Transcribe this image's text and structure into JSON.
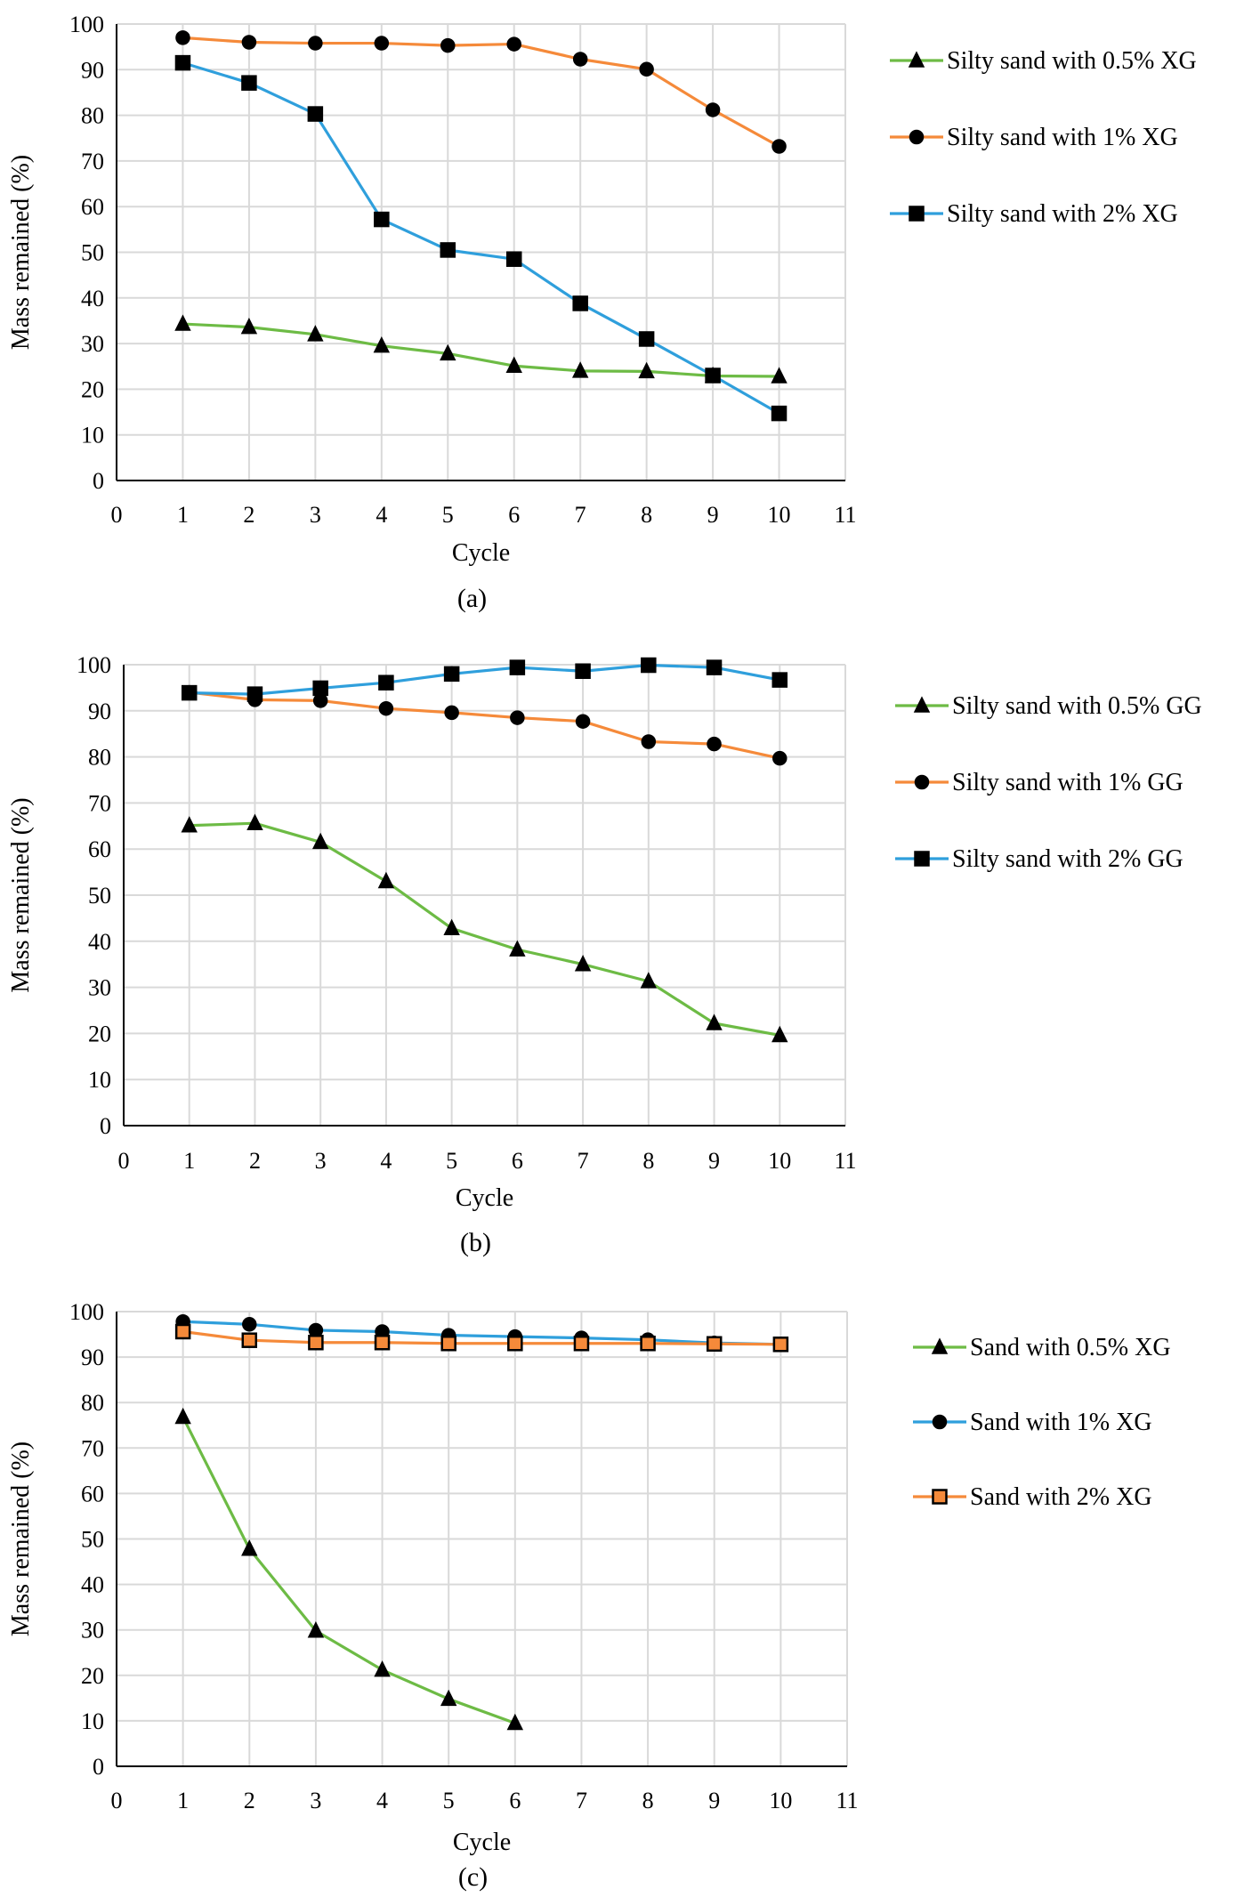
{
  "chart_data": [
    {
      "type": "line",
      "title": "",
      "caption": "(a)",
      "xlabel": "Cycle",
      "ylabel": "Mass remained (%)",
      "xlim": [
        0,
        11
      ],
      "ylim": [
        0,
        100
      ],
      "x_ticks": [
        0,
        1,
        2,
        3,
        4,
        5,
        6,
        7,
        8,
        9,
        10,
        11
      ],
      "y_ticks": [
        0,
        10,
        20,
        30,
        40,
        50,
        60,
        70,
        80,
        90,
        100
      ],
      "grid": true,
      "legend_position": "right",
      "series": [
        {
          "name": "Silty sand with 0.5% XG",
          "color": "#6dbb45",
          "marker": "triangle",
          "marker_fill": "#000000",
          "x": [
            1,
            2,
            3,
            4,
            5,
            6,
            7,
            8,
            9,
            10
          ],
          "values": [
            34.3,
            33.6,
            32.0,
            29.5,
            27.8,
            25.1,
            24.0,
            23.9,
            22.9,
            22.8
          ]
        },
        {
          "name": "Silty sand with 1% XG",
          "color": "#f58a3a",
          "marker": "circle",
          "marker_fill": "#000000",
          "x": [
            1,
            2,
            3,
            4,
            5,
            6,
            7,
            8,
            9,
            10
          ],
          "values": [
            97.0,
            96.0,
            95.8,
            95.8,
            95.3,
            95.6,
            92.3,
            90.1,
            81.2,
            73.2
          ]
        },
        {
          "name": "Silty sand with 2% XG",
          "color": "#2f9fdc",
          "marker": "square",
          "marker_fill": "#000000",
          "x": [
            1,
            2,
            3,
            4,
            5,
            6,
            7,
            8,
            9,
            10
          ],
          "values": [
            91.5,
            87.1,
            80.3,
            57.2,
            50.5,
            48.5,
            38.8,
            31.0,
            23.0,
            14.7
          ]
        }
      ]
    },
    {
      "type": "line",
      "title": "",
      "caption": "(b)",
      "xlabel": "Cycle",
      "ylabel": "Mass remained (%)",
      "xlim": [
        0,
        11
      ],
      "ylim": [
        0,
        100
      ],
      "x_ticks": [
        0,
        1,
        2,
        3,
        4,
        5,
        6,
        7,
        8,
        9,
        10,
        11
      ],
      "y_ticks": [
        0,
        10,
        20,
        30,
        40,
        50,
        60,
        70,
        80,
        90,
        100
      ],
      "grid": true,
      "legend_position": "right",
      "series": [
        {
          "name": "Silty sand with 0.5% GG",
          "color": "#6dbb45",
          "marker": "triangle",
          "marker_fill": "#000000",
          "x": [
            1,
            2,
            3,
            4,
            5,
            6,
            7,
            8,
            9,
            10
          ],
          "values": [
            65.1,
            65.6,
            61.5,
            53.0,
            42.8,
            38.2,
            35.0,
            31.3,
            22.2,
            19.6
          ]
        },
        {
          "name": "Silty sand with 1% GG",
          "color": "#f58a3a",
          "marker": "circle",
          "marker_fill": "#000000",
          "x": [
            1,
            2,
            3,
            4,
            5,
            6,
            7,
            8,
            9,
            10
          ],
          "values": [
            94.0,
            92.4,
            92.2,
            90.5,
            89.6,
            88.5,
            87.7,
            83.3,
            82.8,
            79.7
          ]
        },
        {
          "name": "Silty sand with 2% GG",
          "color": "#2f9fdc",
          "marker": "square",
          "marker_fill": "#000000",
          "x": [
            1,
            2,
            3,
            4,
            5,
            6,
            7,
            8,
            9,
            10
          ],
          "values": [
            93.9,
            93.6,
            94.9,
            96.1,
            98.0,
            99.4,
            98.6,
            99.9,
            99.4,
            96.7
          ]
        }
      ]
    },
    {
      "type": "line",
      "title": "",
      "caption": "(c)",
      "xlabel": "Cycle",
      "ylabel": "Mass remained (%)",
      "xlim": [
        0,
        11
      ],
      "ylim": [
        0,
        100
      ],
      "x_ticks": [
        0,
        1,
        2,
        3,
        4,
        5,
        6,
        7,
        8,
        9,
        10,
        11
      ],
      "y_ticks": [
        0,
        10,
        20,
        30,
        40,
        50,
        60,
        70,
        80,
        90,
        100
      ],
      "grid": true,
      "legend_position": "right",
      "series": [
        {
          "name": "Sand with 0.5% XG",
          "color": "#6dbb45",
          "marker": "triangle",
          "marker_fill": "#000000",
          "x": [
            1,
            2,
            3,
            4,
            5,
            6
          ],
          "values": [
            76.8,
            47.8,
            29.8,
            21.2,
            14.8,
            9.5
          ]
        },
        {
          "name": "Sand with 1% XG",
          "color": "#2f9fdc",
          "marker": "circle",
          "marker_fill": "#000000",
          "x": [
            1,
            2,
            3,
            4,
            5,
            6,
            7,
            8,
            9,
            10
          ],
          "values": [
            97.8,
            97.2,
            95.9,
            95.6,
            94.8,
            94.5,
            94.2,
            93.8,
            93.1,
            92.8
          ]
        },
        {
          "name": "Sand with 2% XG",
          "color": "#f58a3a",
          "marker": "square",
          "marker_fill": "#f58a3a",
          "x": [
            1,
            2,
            3,
            4,
            5,
            6,
            7,
            8,
            9,
            10
          ],
          "values": [
            95.6,
            93.7,
            93.2,
            93.2,
            93.0,
            93.0,
            93.0,
            93.0,
            92.9,
            92.8
          ]
        }
      ]
    }
  ]
}
